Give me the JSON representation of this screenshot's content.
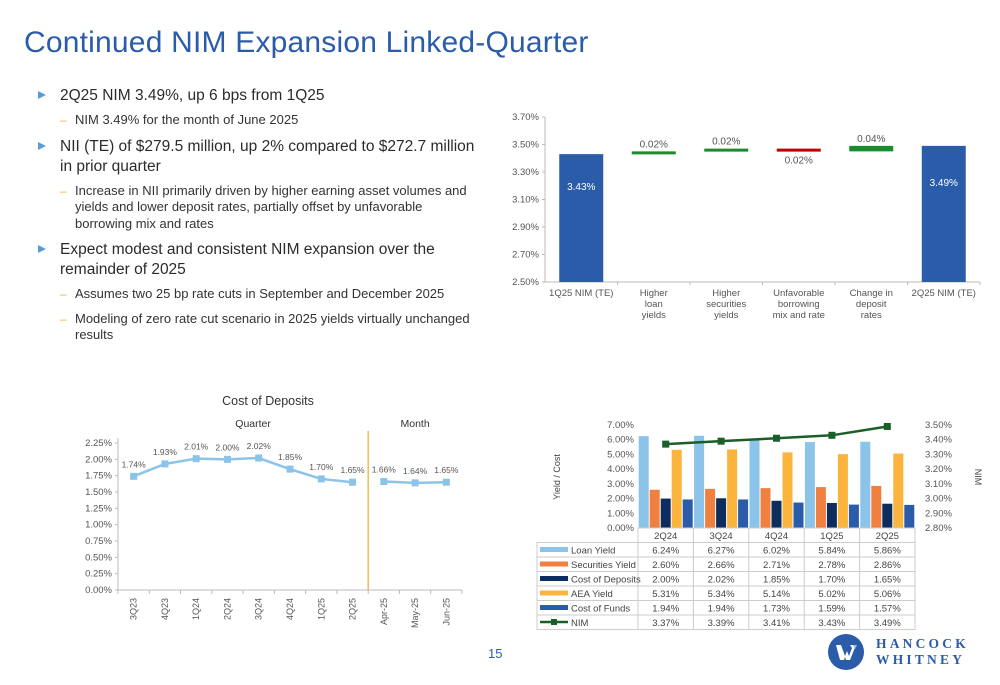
{
  "header": {
    "title": "Continued NIM Expansion Linked-Quarter"
  },
  "bullets": [
    {
      "text": "2Q25 NIM 3.49%, up 6 bps from 1Q25",
      "subs": [
        "NIM 3.49% for the month of June 2025"
      ]
    },
    {
      "text": "NII (TE) of $279.5 million, up 2% compared to $272.7 million in prior quarter",
      "subs": [
        "Increase in NII primarily driven by higher earning asset volumes and yields and lower deposit rates, partially offset by unfavorable borrowing mix and rates"
      ]
    },
    {
      "text": "Expect modest and consistent NIM expansion over the remainder of 2025",
      "subs": [
        "Assumes two 25 bp rate cuts in September and December 2025",
        "Modeling of zero rate cut scenario in 2025 yields virtually unchanged results"
      ]
    }
  ],
  "footer": {
    "page_number": "15",
    "logo_line1": "HANCOCK",
    "logo_line2": "WHITNEY"
  },
  "colors": {
    "brand_blue": "#2a5caa",
    "increase_green": "#1e8a2e",
    "decrease_red": "#c00000"
  },
  "chart_data": [
    {
      "type": "waterfall",
      "title": "",
      "categories": [
        "1Q25 NIM (TE)",
        "Higher loan yields",
        "Higher securities yields",
        "Unfavorable borrowing mix and rate",
        "Change in deposit rates",
        "2Q25 NIM (TE)"
      ],
      "category_lines": [
        [
          "1Q25 NIM (TE)"
        ],
        [
          "Higher",
          "loan",
          "yields"
        ],
        [
          "Higher",
          "securities",
          "yields"
        ],
        [
          "Unfavorable",
          "borrowing",
          "mix and rate"
        ],
        [
          "Change in",
          "deposit",
          "rates"
        ],
        [
          "2Q25 NIM (TE)"
        ]
      ],
      "steps": [
        {
          "kind": "total",
          "value": 3.43,
          "label": "3.43%"
        },
        {
          "kind": "increase",
          "value": 0.02,
          "label": "0.02%"
        },
        {
          "kind": "increase",
          "value": 0.02,
          "label": "0.02%"
        },
        {
          "kind": "decrease",
          "value": -0.02,
          "label": "0.02%"
        },
        {
          "kind": "increase",
          "value": 0.04,
          "label": "0.04%"
        },
        {
          "kind": "total",
          "value": 3.49,
          "label": "3.49%"
        }
      ],
      "yticks": [
        "2.50%",
        "2.70%",
        "2.90%",
        "3.10%",
        "3.30%",
        "3.50%",
        "3.70%"
      ],
      "ylim": [
        2.5,
        3.7
      ],
      "xlabel": "",
      "ylabel": ""
    },
    {
      "type": "line",
      "title": "Cost of Deposits",
      "group_labels": [
        "Quarter",
        "Month"
      ],
      "categories": [
        "3Q23",
        "4Q23",
        "1Q24",
        "2Q24",
        "3Q24",
        "4Q24",
        "1Q25",
        "2Q25",
        "Apr-25",
        "May-25",
        "Jun-25"
      ],
      "series": [
        {
          "name": "Quarter",
          "x": [
            "3Q23",
            "4Q23",
            "1Q24",
            "2Q24",
            "3Q24",
            "4Q24",
            "1Q25",
            "2Q25"
          ],
          "values": [
            1.74,
            1.93,
            2.01,
            2.0,
            2.02,
            1.85,
            1.7,
            1.65
          ],
          "labels": [
            "1.74%",
            "1.93%",
            "2.01%",
            "2.00%",
            "2.02%",
            "1.85%",
            "1.70%",
            "1.65%"
          ]
        },
        {
          "name": "Month",
          "x": [
            "Apr-25",
            "May-25",
            "Jun-25"
          ],
          "values": [
            1.66,
            1.64,
            1.65
          ],
          "labels": [
            "1.66%",
            "1.64%",
            "1.65%"
          ]
        }
      ],
      "yticks": [
        "0.00%",
        "0.25%",
        "0.50%",
        "0.75%",
        "1.00%",
        "1.25%",
        "1.50%",
        "1.75%",
        "2.00%",
        "2.25%"
      ],
      "ylim": [
        0,
        2.25
      ],
      "series_color": "#8cc3e8",
      "divider_color": "#f2b134"
    },
    {
      "type": "bar+line",
      "title": "",
      "categories": [
        "2Q24",
        "3Q24",
        "4Q24",
        "1Q25",
        "2Q25"
      ],
      "ylabel": "Yield / Cost",
      "y2label": "NIM",
      "yticks": [
        "0.00%",
        "1.00%",
        "2.00%",
        "3.00%",
        "4.00%",
        "5.00%",
        "6.00%",
        "7.00%"
      ],
      "ylim": [
        0,
        7
      ],
      "y2ticks": [
        "2.80%",
        "2.90%",
        "3.00%",
        "3.10%",
        "3.20%",
        "3.30%",
        "3.40%",
        "3.50%"
      ],
      "y2lim": [
        2.8,
        3.5
      ],
      "series": [
        {
          "name": "Loan Yield",
          "type": "bar",
          "color": "#8cc3e8",
          "values": [
            6.24,
            6.27,
            6.02,
            5.84,
            5.86
          ],
          "labels": [
            "6.24%",
            "6.27%",
            "6.02%",
            "5.84%",
            "5.86%"
          ]
        },
        {
          "name": "Securities Yield",
          "type": "bar",
          "color": "#f08040",
          "values": [
            2.6,
            2.66,
            2.71,
            2.78,
            2.86
          ],
          "labels": [
            "2.60%",
            "2.66%",
            "2.71%",
            "2.78%",
            "2.86%"
          ]
        },
        {
          "name": "Cost of Deposits",
          "type": "bar",
          "color": "#0c2d5e",
          "values": [
            2.0,
            2.02,
            1.85,
            1.7,
            1.65
          ],
          "labels": [
            "2.00%",
            "2.02%",
            "1.85%",
            "1.70%",
            "1.65%"
          ]
        },
        {
          "name": "AEA Yield",
          "type": "bar",
          "color": "#fbb43c",
          "values": [
            5.31,
            5.34,
            5.14,
            5.02,
            5.06
          ],
          "labels": [
            "5.31%",
            "5.34%",
            "5.14%",
            "5.02%",
            "5.06%"
          ]
        },
        {
          "name": "Cost of Funds",
          "type": "bar",
          "color": "#2a5caa",
          "values": [
            1.94,
            1.94,
            1.73,
            1.59,
            1.57
          ],
          "labels": [
            "1.94%",
            "1.94%",
            "1.73%",
            "1.59%",
            "1.57%"
          ]
        },
        {
          "name": "NIM",
          "type": "line",
          "axis": "y2",
          "color": "#1a5e2a",
          "values": [
            3.37,
            3.39,
            3.41,
            3.43,
            3.49
          ],
          "labels": [
            "3.37%",
            "3.39%",
            "3.41%",
            "3.43%",
            "3.49%"
          ]
        }
      ],
      "legend": "data-table-below"
    }
  ]
}
